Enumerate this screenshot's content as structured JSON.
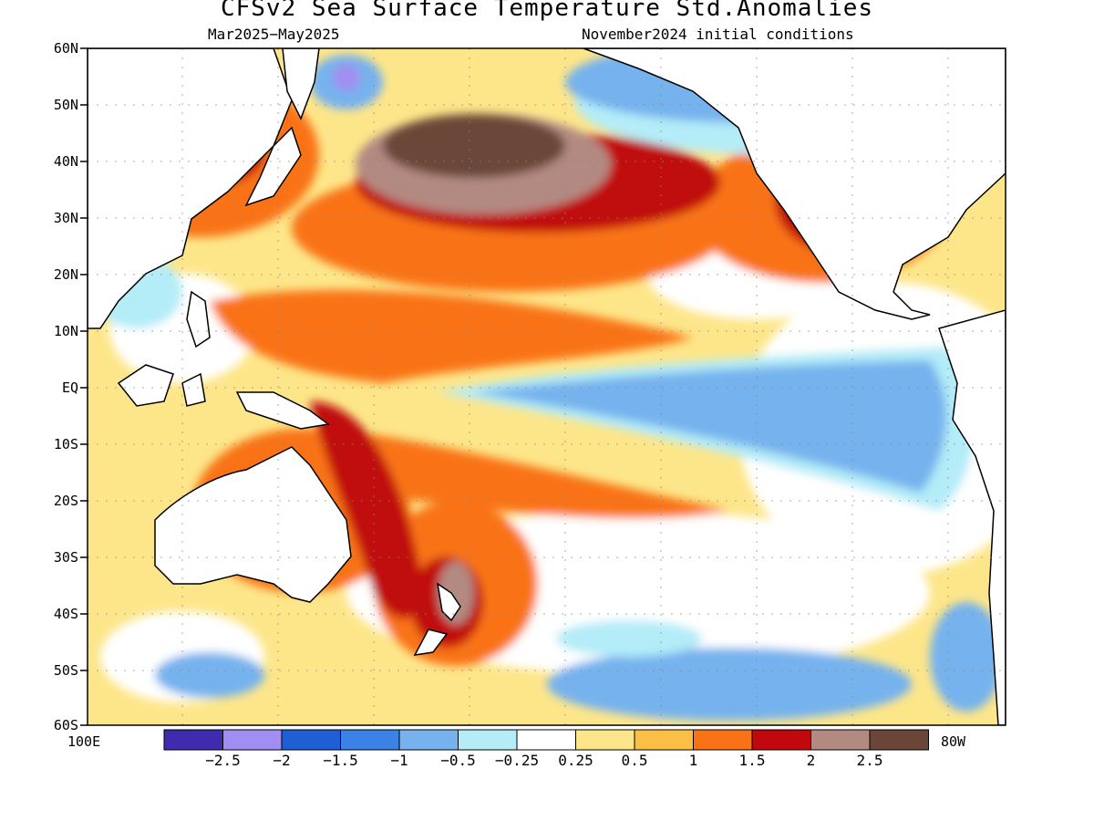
{
  "title": "CFSv2 Sea Surface Temperature Std.Anomalies",
  "subtitle_left": "Mar2025−May2025",
  "subtitle_right": "November2024 initial conditions",
  "lat_labels": [
    "60N",
    "50N",
    "40N",
    "30N",
    "20N",
    "10N",
    "EQ",
    "10S",
    "20S",
    "30S",
    "40S",
    "50S",
    "60S"
  ],
  "lon_left_label": "100E",
  "lon_right_label": "80W",
  "colorbar": {
    "colors": [
      "#3e2bb0",
      "#a28ef2",
      "#1f5fd6",
      "#3b82e6",
      "#76b2ee",
      "#b4ecf8",
      "#ffffff",
      "#fde68a",
      "#fbbf45",
      "#f97316",
      "#c0080e",
      "#b38a82",
      "#6b4638"
    ],
    "labels": [
      "−2.5",
      "−2",
      "−1.5",
      "−1",
      "−0.5",
      "−0.25",
      "0.25",
      "0.5",
      "1",
      "1.5",
      "2",
      "2.5"
    ]
  },
  "map": {
    "land_color": "#ffffff",
    "coast_color": "#000000",
    "grid_style": "dotted"
  }
}
